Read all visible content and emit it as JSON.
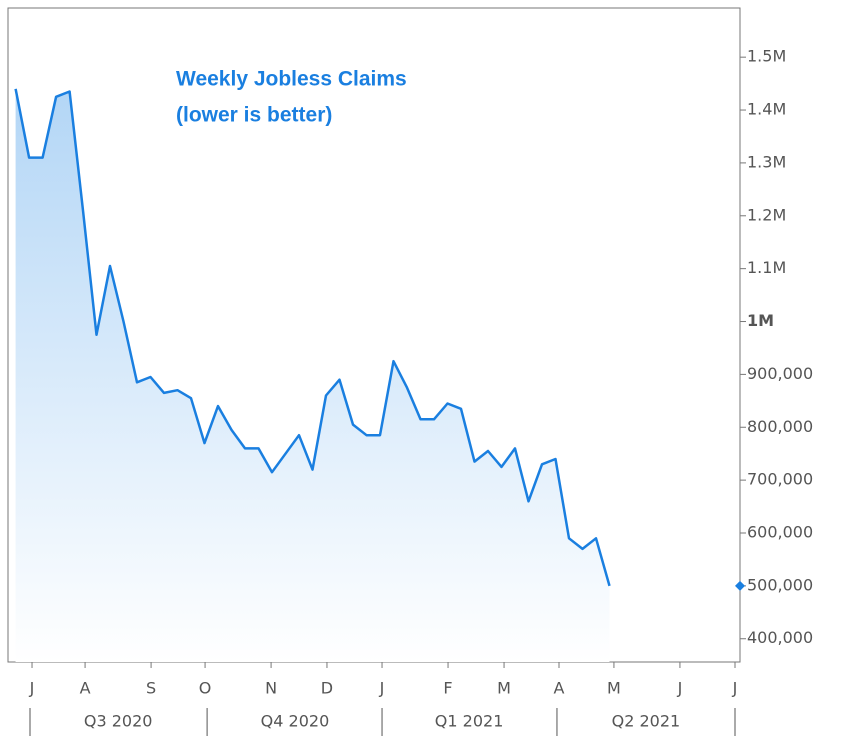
{
  "chart_data": {
    "type": "area",
    "title": "Weekly Jobless Claims",
    "subtitle": "(lower is better)",
    "color": "#1a7fe0",
    "x": [
      0,
      1,
      2,
      3,
      4,
      5,
      6,
      7,
      8,
      9,
      10,
      11,
      12,
      13,
      14,
      15,
      16,
      17,
      18,
      19,
      20,
      21,
      22,
      23,
      24,
      25,
      26,
      27,
      28,
      29,
      30,
      31,
      32,
      33,
      34,
      35,
      36,
      37,
      38,
      39,
      40,
      41,
      42,
      43,
      44
    ],
    "values": [
      1440000,
      1310000,
      1310000,
      1425000,
      1435000,
      1210000,
      975000,
      1105000,
      1000000,
      885000,
      895000,
      865000,
      870000,
      855000,
      770000,
      840000,
      795000,
      760000,
      760000,
      715000,
      750000,
      785000,
      720000,
      860000,
      890000,
      805000,
      785000,
      785000,
      925000,
      875000,
      815000,
      815000,
      845000,
      835000,
      735000,
      755000,
      725000,
      760000,
      660000,
      730000,
      740000,
      590000,
      570000,
      590000,
      500000
    ],
    "xlim": [
      -0.56,
      53.67
    ],
    "ylim": [
      356000,
      1593000
    ],
    "yticks": [
      {
        "value": 400000,
        "label": "400,000"
      },
      {
        "value": 500000,
        "label": "500,000"
      },
      {
        "value": 600000,
        "label": "600,000"
      },
      {
        "value": 700000,
        "label": "700,000"
      },
      {
        "value": 800000,
        "label": "800,000"
      },
      {
        "value": 900000,
        "label": "900,000"
      },
      {
        "value": 1000000,
        "label": "1M"
      },
      {
        "value": 1100000,
        "label": "1.1M"
      },
      {
        "value": 1200000,
        "label": "1.2M"
      },
      {
        "value": 1300000,
        "label": "1.3M"
      },
      {
        "value": 1400000,
        "label": "1.4M"
      },
      {
        "value": 1500000,
        "label": "1.5M"
      }
    ],
    "xticks": [
      {
        "value": 1.22,
        "label": "J"
      },
      {
        "value": 5.15,
        "label": "A"
      },
      {
        "value": 10.04,
        "label": "S"
      },
      {
        "value": 14.04,
        "label": "O"
      },
      {
        "value": 18.93,
        "label": "N"
      },
      {
        "value": 23.07,
        "label": "D"
      },
      {
        "value": 27.15,
        "label": "J"
      },
      {
        "value": 32.04,
        "label": "F"
      },
      {
        "value": 36.19,
        "label": "M"
      },
      {
        "value": 40.26,
        "label": "A"
      },
      {
        "value": 44.33,
        "label": "M"
      },
      {
        "value": 49.22,
        "label": "J"
      },
      {
        "value": 53.3,
        "label": "J"
      }
    ],
    "quarter_labels": [
      {
        "value": 7.6,
        "label": "Q3 2020"
      },
      {
        "value": 20.7,
        "label": "Q4 2020"
      },
      {
        "value": 33.6,
        "label": "Q1 2021"
      },
      {
        "value": 46.7,
        "label": "Q2 2021"
      }
    ],
    "quarter_ticks": [
      1.07,
      14.19,
      27.15,
      40.11,
      53.3
    ]
  }
}
